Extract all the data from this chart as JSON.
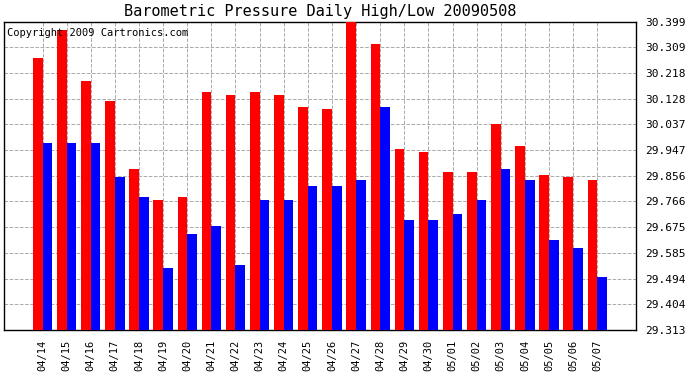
{
  "title": "Barometric Pressure Daily High/Low 20090508",
  "copyright": "Copyright 2009 Cartronics.com",
  "dates": [
    "04/14",
    "04/15",
    "04/16",
    "04/17",
    "04/18",
    "04/19",
    "04/20",
    "04/21",
    "04/22",
    "04/23",
    "04/24",
    "04/25",
    "04/26",
    "04/27",
    "04/28",
    "04/29",
    "04/30",
    "05/01",
    "05/02",
    "05/03",
    "05/04",
    "05/05",
    "05/06",
    "05/07"
  ],
  "highs": [
    30.27,
    30.37,
    30.19,
    30.12,
    29.88,
    29.77,
    29.78,
    30.15,
    30.14,
    30.15,
    30.14,
    30.1,
    30.09,
    30.44,
    30.32,
    29.95,
    29.94,
    29.87,
    29.87,
    30.04,
    29.96,
    29.86,
    29.85,
    29.84
  ],
  "lows": [
    29.97,
    29.97,
    29.97,
    29.85,
    29.78,
    29.53,
    29.65,
    29.68,
    29.54,
    29.77,
    29.77,
    29.82,
    29.82,
    29.84,
    30.1,
    29.7,
    29.7,
    29.72,
    29.77,
    29.88,
    29.84,
    29.63,
    29.6,
    29.5
  ],
  "yticks": [
    29.313,
    29.404,
    29.494,
    29.585,
    29.675,
    29.766,
    29.856,
    29.947,
    30.037,
    30.128,
    30.218,
    30.309,
    30.399
  ],
  "ymin": 29.313,
  "ymax": 30.399,
  "high_color": "#ff0000",
  "low_color": "#0000ff",
  "background_color": "#ffffff",
  "grid_color": "#aaaaaa",
  "title_fontsize": 11,
  "copyright_fontsize": 7.5
}
